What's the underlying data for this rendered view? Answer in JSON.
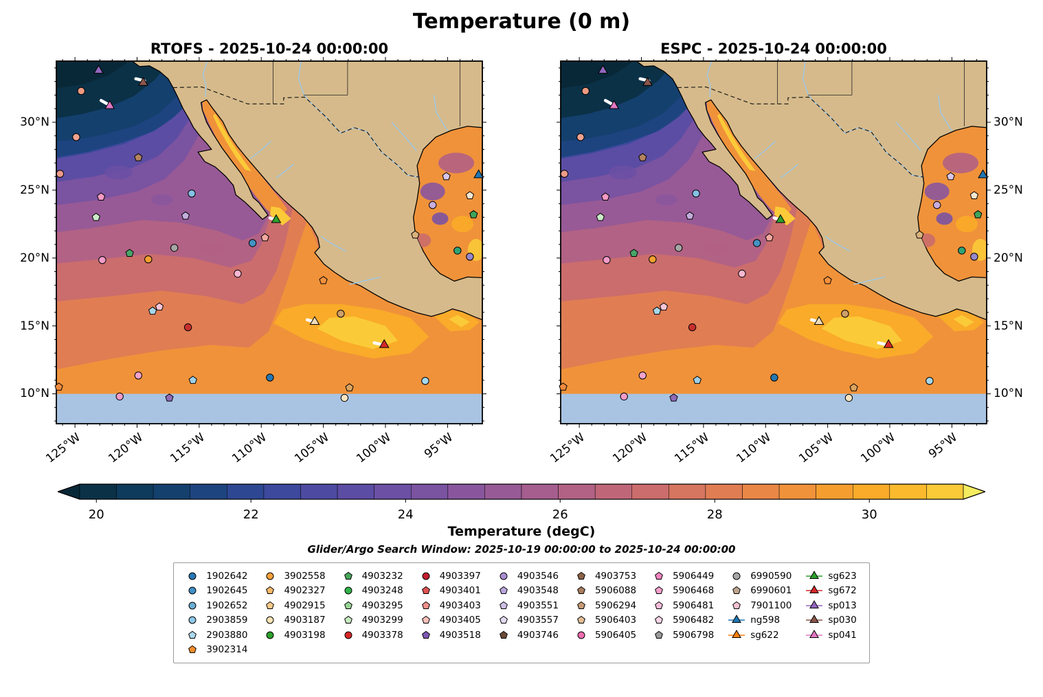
{
  "title": "Temperature (0 m)",
  "panels": [
    {
      "model": "RTOFS",
      "title": "RTOFS - 2025-10-24 00:00:00"
    },
    {
      "model": "ESPC",
      "title": "ESPC - 2025-10-24 00:00:00"
    }
  ],
  "axes": {
    "lat_ticks": [
      {
        "value": 30,
        "label": "30°N"
      },
      {
        "value": 25,
        "label": "25°N"
      },
      {
        "value": 20,
        "label": "20°N"
      },
      {
        "value": 15,
        "label": "15°N"
      },
      {
        "value": 10,
        "label": "10°N"
      }
    ],
    "lon_ticks": [
      {
        "value": 125,
        "label": "125°W"
      },
      {
        "value": 120,
        "label": "120°W"
      },
      {
        "value": 115,
        "label": "115°W"
      },
      {
        "value": 110,
        "label": "110°W"
      },
      {
        "value": 105,
        "label": "105°W"
      },
      {
        "value": 100,
        "label": "100°W"
      },
      {
        "value": 95,
        "label": "95°W"
      }
    ]
  },
  "colorbar": {
    "label": "Temperature (degC)",
    "subtitle": "Glider/Argo Search Window: 2025-10-19 00:00:00 to 2025-10-24 00:00:00",
    "vmin": 19.5,
    "vmax": 31.5,
    "ticks": [
      20,
      22,
      24,
      26,
      28,
      30
    ],
    "segment_colors": [
      "#0b3147",
      "#0e3a5c",
      "#14406e",
      "#1e4480",
      "#2d4792",
      "#3d499c",
      "#4d4ba1",
      "#5c4da4",
      "#6b50a4",
      "#7a53a1",
      "#89569d",
      "#975a96",
      "#a55e8e",
      "#b26284",
      "#bf6779",
      "#cb6d6c",
      "#d67560",
      "#e07d53",
      "#e98746",
      "#f0923a",
      "#f59e2f",
      "#f9ab29",
      "#fbba2d",
      "#fbca38"
    ],
    "arrow_left_color": "#082838",
    "arrow_right_color": "#f5ec5f"
  },
  "map_colors": {
    "land": "#d6ba8b",
    "coast": "#000000",
    "mask": "#a9c4e3",
    "river": "#9ec9e8",
    "border": "#111111",
    "track": "#ffffff"
  },
  "legend": {
    "columns": [
      [
        {
          "label": "1902642",
          "shape": "circle",
          "color": "#2878b5"
        },
        {
          "label": "1902645",
          "shape": "circle",
          "color": "#4191c5"
        },
        {
          "label": "1902652",
          "shape": "circle",
          "color": "#6aaed6"
        },
        {
          "label": "2903859",
          "shape": "circle",
          "color": "#8ec7e8"
        },
        {
          "label": "2903880",
          "shape": "pentagon",
          "color": "#abd9ee"
        },
        {
          "label": "3902314",
          "shape": "pentagon",
          "color": "#f28e2b"
        }
      ],
      [
        {
          "label": "3902558",
          "shape": "circle",
          "color": "#f9a13a"
        },
        {
          "label": "4902327",
          "shape": "pentagon",
          "color": "#fbb86a"
        },
        {
          "label": "4902915",
          "shape": "pentagon",
          "color": "#fdc98a"
        },
        {
          "label": "4903187",
          "shape": "circle",
          "color": "#fde3b5"
        },
        {
          "label": "4903198",
          "shape": "circle",
          "color": "#2ca02c"
        }
      ],
      [
        {
          "label": "4903232",
          "shape": "pentagon",
          "color": "#46a65a"
        },
        {
          "label": "4903248",
          "shape": "circle",
          "color": "#32b44a"
        },
        {
          "label": "4903295",
          "shape": "pentagon",
          "color": "#98d594"
        },
        {
          "label": "4903299",
          "shape": "pentagon",
          "color": "#c7e9c0"
        },
        {
          "label": "4903378",
          "shape": "circle",
          "color": "#d62728"
        }
      ],
      [
        {
          "label": "4903397",
          "shape": "circle",
          "color": "#c21f2f"
        },
        {
          "label": "4903401",
          "shape": "pentagon",
          "color": "#e05252"
        },
        {
          "label": "4903403",
          "shape": "pentagon",
          "color": "#f0908c"
        },
        {
          "label": "4903405",
          "shape": "pentagon",
          "color": "#f8c0bb"
        },
        {
          "label": "4903518",
          "shape": "pentagon",
          "color": "#7e57b2"
        }
      ],
      [
        {
          "label": "4903546",
          "shape": "circle",
          "color": "#a98fd0"
        },
        {
          "label": "4903548",
          "shape": "pentagon",
          "color": "#bba6dc"
        },
        {
          "label": "4903551",
          "shape": "pentagon",
          "color": "#cdbfe6"
        },
        {
          "label": "4903557",
          "shape": "pentagon",
          "color": "#e2d9f0"
        },
        {
          "label": "4903746",
          "shape": "pentagon",
          "color": "#6b4a38"
        }
      ],
      [
        {
          "label": "4903753",
          "shape": "pentagon",
          "color": "#8c6248"
        },
        {
          "label": "5906088",
          "shape": "pentagon",
          "color": "#a87c5f"
        },
        {
          "label": "5906294",
          "shape": "pentagon",
          "color": "#c59a76"
        },
        {
          "label": "5906403",
          "shape": "pentagon",
          "color": "#e0bd96"
        },
        {
          "label": "5906405",
          "shape": "circle",
          "color": "#f06daf"
        }
      ],
      [
        {
          "label": "5906449",
          "shape": "pentagon",
          "color": "#f184be"
        },
        {
          "label": "5906468",
          "shape": "pentagon",
          "color": "#f5a0cc"
        },
        {
          "label": "5906481",
          "shape": "pentagon",
          "color": "#f8bcd9"
        },
        {
          "label": "5906482",
          "shape": "pentagon",
          "color": "#fbd4e6"
        },
        {
          "label": "5906798",
          "shape": "pentagon",
          "color": "#9a9a9a"
        }
      ],
      [
        {
          "label": "6990590",
          "shape": "circle",
          "color": "#a8a8a8"
        },
        {
          "label": "6990601",
          "shape": "pentagon",
          "color": "#bfa58f"
        },
        {
          "label": "7901100",
          "shape": "pentagon",
          "color": "#f4c2cf"
        },
        {
          "label": "ng598",
          "shape": "triangle",
          "color": "#1f77b4",
          "line": true
        },
        {
          "label": "sg622",
          "shape": "triangle",
          "color": "#ff7f0e",
          "line": true
        }
      ],
      [
        {
          "label": "sg623",
          "shape": "triangle",
          "color": "#2ca02c",
          "line": true
        },
        {
          "label": "sg672",
          "shape": "triangle",
          "color": "#d62728",
          "line": true
        },
        {
          "label": "sp013",
          "shape": "triangle",
          "color": "#9467bd",
          "line": true
        },
        {
          "label": "sp030",
          "shape": "triangle",
          "color": "#8c564b",
          "line": true
        },
        {
          "label": "sp041",
          "shape": "triangle",
          "color": "#e377c2",
          "line": true
        }
      ]
    ]
  },
  "chart_data": {
    "type": "heatmap",
    "title": "Temperature (0 m)",
    "variable": "sea surface temperature",
    "units": "degC",
    "depth_m": 0,
    "models": [
      "RTOFS",
      "ESPC"
    ],
    "valid_time": "2025-10-24 00:00:00",
    "search_window": "2025-10-19 00:00:00 to 2025-10-24 00:00:00",
    "lon_ticks_degW": [
      125,
      120,
      115,
      110,
      105,
      100,
      95
    ],
    "lat_ticks_degN": [
      10,
      15,
      20,
      25,
      30
    ],
    "temperature_range_degC": [
      19.5,
      31.5
    ],
    "colorbar_ticks_degC": [
      20,
      22,
      24,
      26,
      28,
      30
    ],
    "markers": [
      {
        "shape": "triangle",
        "color": "#9467bd",
        "lonW": 123.1,
        "lat": 33.8
      },
      {
        "shape": "triangle",
        "color": "#8c564b",
        "lonW": 119.5,
        "lat": 32.9,
        "track": [
          [
            120.1,
            33.2
          ],
          [
            119.4,
            33.05
          ]
        ]
      },
      {
        "shape": "triangle",
        "color": "#e377c2",
        "lonW": 122.2,
        "lat": 31.2,
        "track": [
          [
            122.9,
            31.6
          ],
          [
            122.4,
            31.35
          ]
        ]
      },
      {
        "shape": "circle",
        "color": "#ee9a80",
        "lonW": 124.5,
        "lat": 32.3
      },
      {
        "shape": "circle",
        "color": "#f0a290",
        "lonW": 124.9,
        "lat": 28.9
      },
      {
        "shape": "pentagon",
        "color": "#b5845f",
        "lonW": 119.9,
        "lat": 27.4
      },
      {
        "shape": "circle",
        "color": "#ee9b8a",
        "lonW": 126.2,
        "lat": 26.2
      },
      {
        "shape": "pentagon",
        "color": "#f49ac2",
        "lonW": 122.9,
        "lat": 24.5
      },
      {
        "shape": "circle",
        "color": "#85c1e5",
        "lonW": 115.6,
        "lat": 24.75
      },
      {
        "shape": "pentagon",
        "color": "#cdebc9",
        "lonW": 123.3,
        "lat": 23.0
      },
      {
        "shape": "pentagon",
        "color": "#c3aedd",
        "lonW": 116.1,
        "lat": 23.1
      },
      {
        "shape": "triangle",
        "color": "#2ca02c",
        "lonW": 108.8,
        "lat": 22.8,
        "track": [
          [
            109.3,
            22.95
          ],
          [
            108.95,
            22.85
          ]
        ]
      },
      {
        "shape": "pentagon",
        "color": "#f4a9a0",
        "lonW": 109.7,
        "lat": 21.5
      },
      {
        "shape": "circle",
        "color": "#4393c3",
        "lonW": 110.7,
        "lat": 21.1
      },
      {
        "shape": "circle",
        "color": "#a6a6a6",
        "lonW": 117.0,
        "lat": 20.75
      },
      {
        "shape": "pentagon",
        "color": "#48a56a",
        "lonW": 120.6,
        "lat": 20.35
      },
      {
        "shape": "circle",
        "color": "#f5a030",
        "lonW": 119.1,
        "lat": 19.9
      },
      {
        "shape": "circle",
        "color": "#f29bc9",
        "lonW": 122.8,
        "lat": 19.85
      },
      {
        "shape": "circle",
        "color": "#f7b8d2",
        "lonW": 111.9,
        "lat": 18.85
      },
      {
        "shape": "pentagon",
        "color": "#f5913d",
        "lonW": 105.0,
        "lat": 18.35
      },
      {
        "shape": "pentagon",
        "color": "#f8c6d8",
        "lonW": 118.2,
        "lat": 16.4
      },
      {
        "shape": "pentagon",
        "color": "#a8d8ea",
        "lonW": 118.75,
        "lat": 16.1
      },
      {
        "shape": "circle",
        "color": "#c62f2f",
        "lonW": 115.9,
        "lat": 14.9
      },
      {
        "shape": "triangle",
        "color": "#f0dcb8",
        "lonW": 105.7,
        "lat": 15.3,
        "track": [
          [
            106.3,
            15.45
          ],
          [
            105.9,
            15.35
          ]
        ]
      },
      {
        "shape": "circle",
        "color": "#cfa06a",
        "lonW": 103.6,
        "lat": 15.9
      },
      {
        "shape": "triangle",
        "color": "#d62728",
        "lonW": 100.1,
        "lat": 13.6,
        "track": [
          [
            100.9,
            13.75
          ],
          [
            100.4,
            13.65
          ]
        ]
      },
      {
        "shape": "circle",
        "color": "#2678b2",
        "lonW": 109.3,
        "lat": 11.2
      },
      {
        "shape": "pentagon",
        "color": "#9ed0e8",
        "lonW": 115.5,
        "lat": 11.0
      },
      {
        "shape": "circle",
        "color": "#f2a3cc",
        "lonW": 119.9,
        "lat": 11.35
      },
      {
        "shape": "circle",
        "color": "#f29bc9",
        "lonW": 121.4,
        "lat": 9.8
      },
      {
        "shape": "pentagon",
        "color": "#8e6bb8",
        "lonW": 117.4,
        "lat": 9.7
      },
      {
        "shape": "pentagon",
        "color": "#dba45f",
        "lonW": 102.9,
        "lat": 10.45
      },
      {
        "shape": "circle",
        "color": "#f5e3c0",
        "lonW": 103.3,
        "lat": 9.7
      },
      {
        "shape": "circle",
        "color": "#a5d8ee",
        "lonW": 96.8,
        "lat": 10.95
      },
      {
        "shape": "pentagon",
        "color": "#f08a3c",
        "lonW": 126.3,
        "lat": 10.5
      },
      {
        "shape": "triangle",
        "color": "#1f77b4",
        "lonW": 92.5,
        "lat": 26.1
      },
      {
        "shape": "pentagon",
        "color": "#d9c7ea",
        "lonW": 95.1,
        "lat": 26.0
      },
      {
        "shape": "pentagon",
        "color": "#f6e7d0",
        "lonW": 93.2,
        "lat": 24.6
      },
      {
        "shape": "circle",
        "color": "#c9aede",
        "lonW": 96.2,
        "lat": 23.9
      },
      {
        "shape": "pentagon",
        "color": "#3fa45b",
        "lonW": 92.9,
        "lat": 23.2
      },
      {
        "shape": "pentagon",
        "color": "#d9b27c",
        "lonW": 97.6,
        "lat": 21.7
      },
      {
        "shape": "circle",
        "color": "#2fa377",
        "lonW": 94.2,
        "lat": 20.55
      },
      {
        "shape": "circle",
        "color": "#9787cc",
        "lonW": 93.2,
        "lat": 20.1
      }
    ]
  }
}
